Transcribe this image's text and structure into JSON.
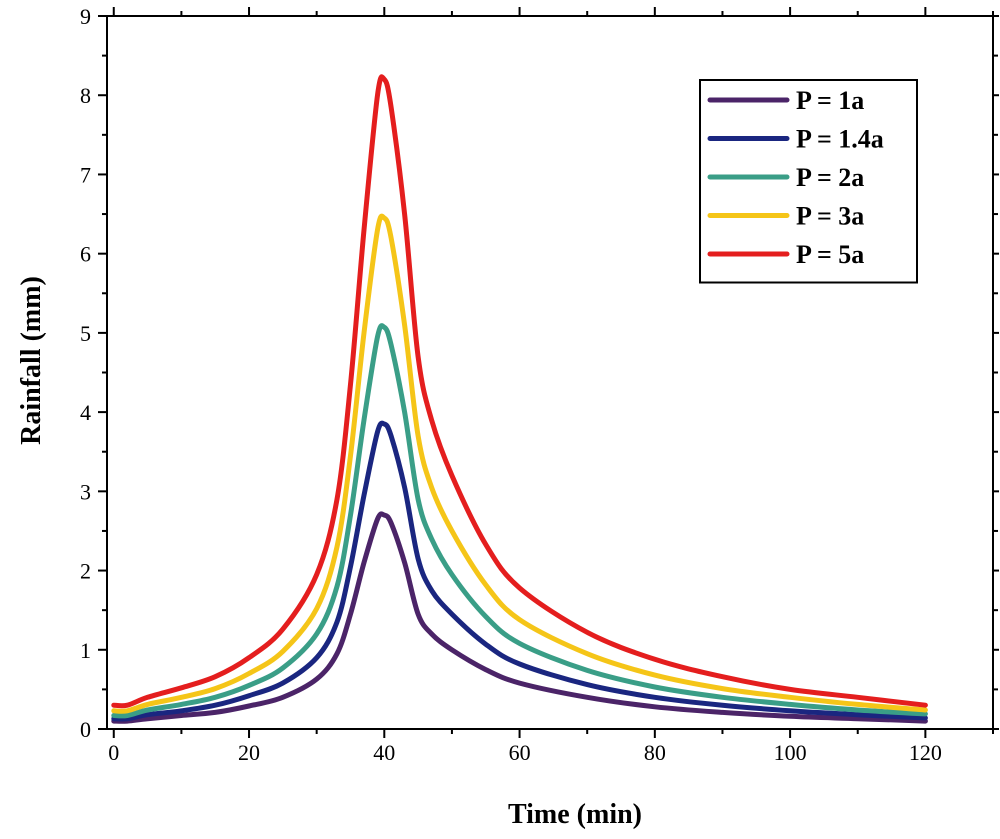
{
  "chart_data": {
    "type": "line",
    "title": "",
    "xlabel": "Time (min)",
    "ylabel": "Rainfall (mm)",
    "xlim": [
      -1,
      130
    ],
    "ylim": [
      0,
      9
    ],
    "xticks": [
      0,
      20,
      40,
      60,
      80,
      100,
      120
    ],
    "yticks": [
      0,
      1,
      2,
      3,
      4,
      5,
      6,
      7,
      8,
      9
    ],
    "xtick_labels": [
      "0",
      "20",
      "40",
      "60",
      "80",
      "100",
      "120"
    ],
    "ytick_labels": [
      "0",
      "1",
      "2",
      "3",
      "4",
      "5",
      "6",
      "7",
      "8",
      "9"
    ],
    "grid": false,
    "legend_position": "top-right",
    "x": [
      0,
      2,
      5,
      10,
      15,
      20,
      25,
      30,
      33,
      35,
      37,
      39,
      40,
      41,
      43,
      45,
      47,
      50,
      55,
      60,
      70,
      80,
      90,
      100,
      110,
      120
    ],
    "series": [
      {
        "name": "P = 1a",
        "color": "#4b2468",
        "values": [
          0.1,
          0.1,
          0.13,
          0.17,
          0.21,
          0.29,
          0.4,
          0.63,
          0.95,
          1.45,
          2.1,
          2.65,
          2.7,
          2.6,
          2.1,
          1.45,
          1.2,
          1.0,
          0.75,
          0.58,
          0.4,
          0.28,
          0.21,
          0.16,
          0.13,
          0.1
        ]
      },
      {
        "name": "P = 1.4a",
        "color": "#1a2680",
        "values": [
          0.13,
          0.13,
          0.18,
          0.23,
          0.3,
          0.42,
          0.58,
          0.9,
          1.35,
          2.05,
          2.95,
          3.75,
          3.85,
          3.7,
          3.05,
          2.15,
          1.75,
          1.45,
          1.07,
          0.82,
          0.56,
          0.4,
          0.3,
          0.23,
          0.18,
          0.14
        ]
      },
      {
        "name": "P = 2a",
        "color": "#3a9e87",
        "values": [
          0.17,
          0.17,
          0.24,
          0.31,
          0.4,
          0.55,
          0.77,
          1.2,
          1.8,
          2.7,
          3.9,
          4.95,
          5.07,
          4.85,
          4.0,
          2.9,
          2.4,
          1.95,
          1.42,
          1.08,
          0.74,
          0.53,
          0.4,
          0.31,
          0.24,
          0.19
        ]
      },
      {
        "name": "P = 3a",
        "color": "#f5c518",
        "values": [
          0.23,
          0.23,
          0.31,
          0.4,
          0.51,
          0.7,
          0.98,
          1.52,
          2.3,
          3.45,
          5.0,
          6.3,
          6.45,
          6.2,
          5.1,
          3.7,
          3.05,
          2.5,
          1.82,
          1.38,
          0.95,
          0.68,
          0.51,
          0.4,
          0.31,
          0.24
        ]
      },
      {
        "name": "P = 5a",
        "color": "#e41e1e",
        "values": [
          0.3,
          0.3,
          0.4,
          0.52,
          0.66,
          0.9,
          1.26,
          1.95,
          2.9,
          4.35,
          6.3,
          8.0,
          8.2,
          7.85,
          6.5,
          4.7,
          3.9,
          3.2,
          2.33,
          1.78,
          1.22,
          0.88,
          0.66,
          0.5,
          0.4,
          0.3
        ]
      }
    ]
  }
}
